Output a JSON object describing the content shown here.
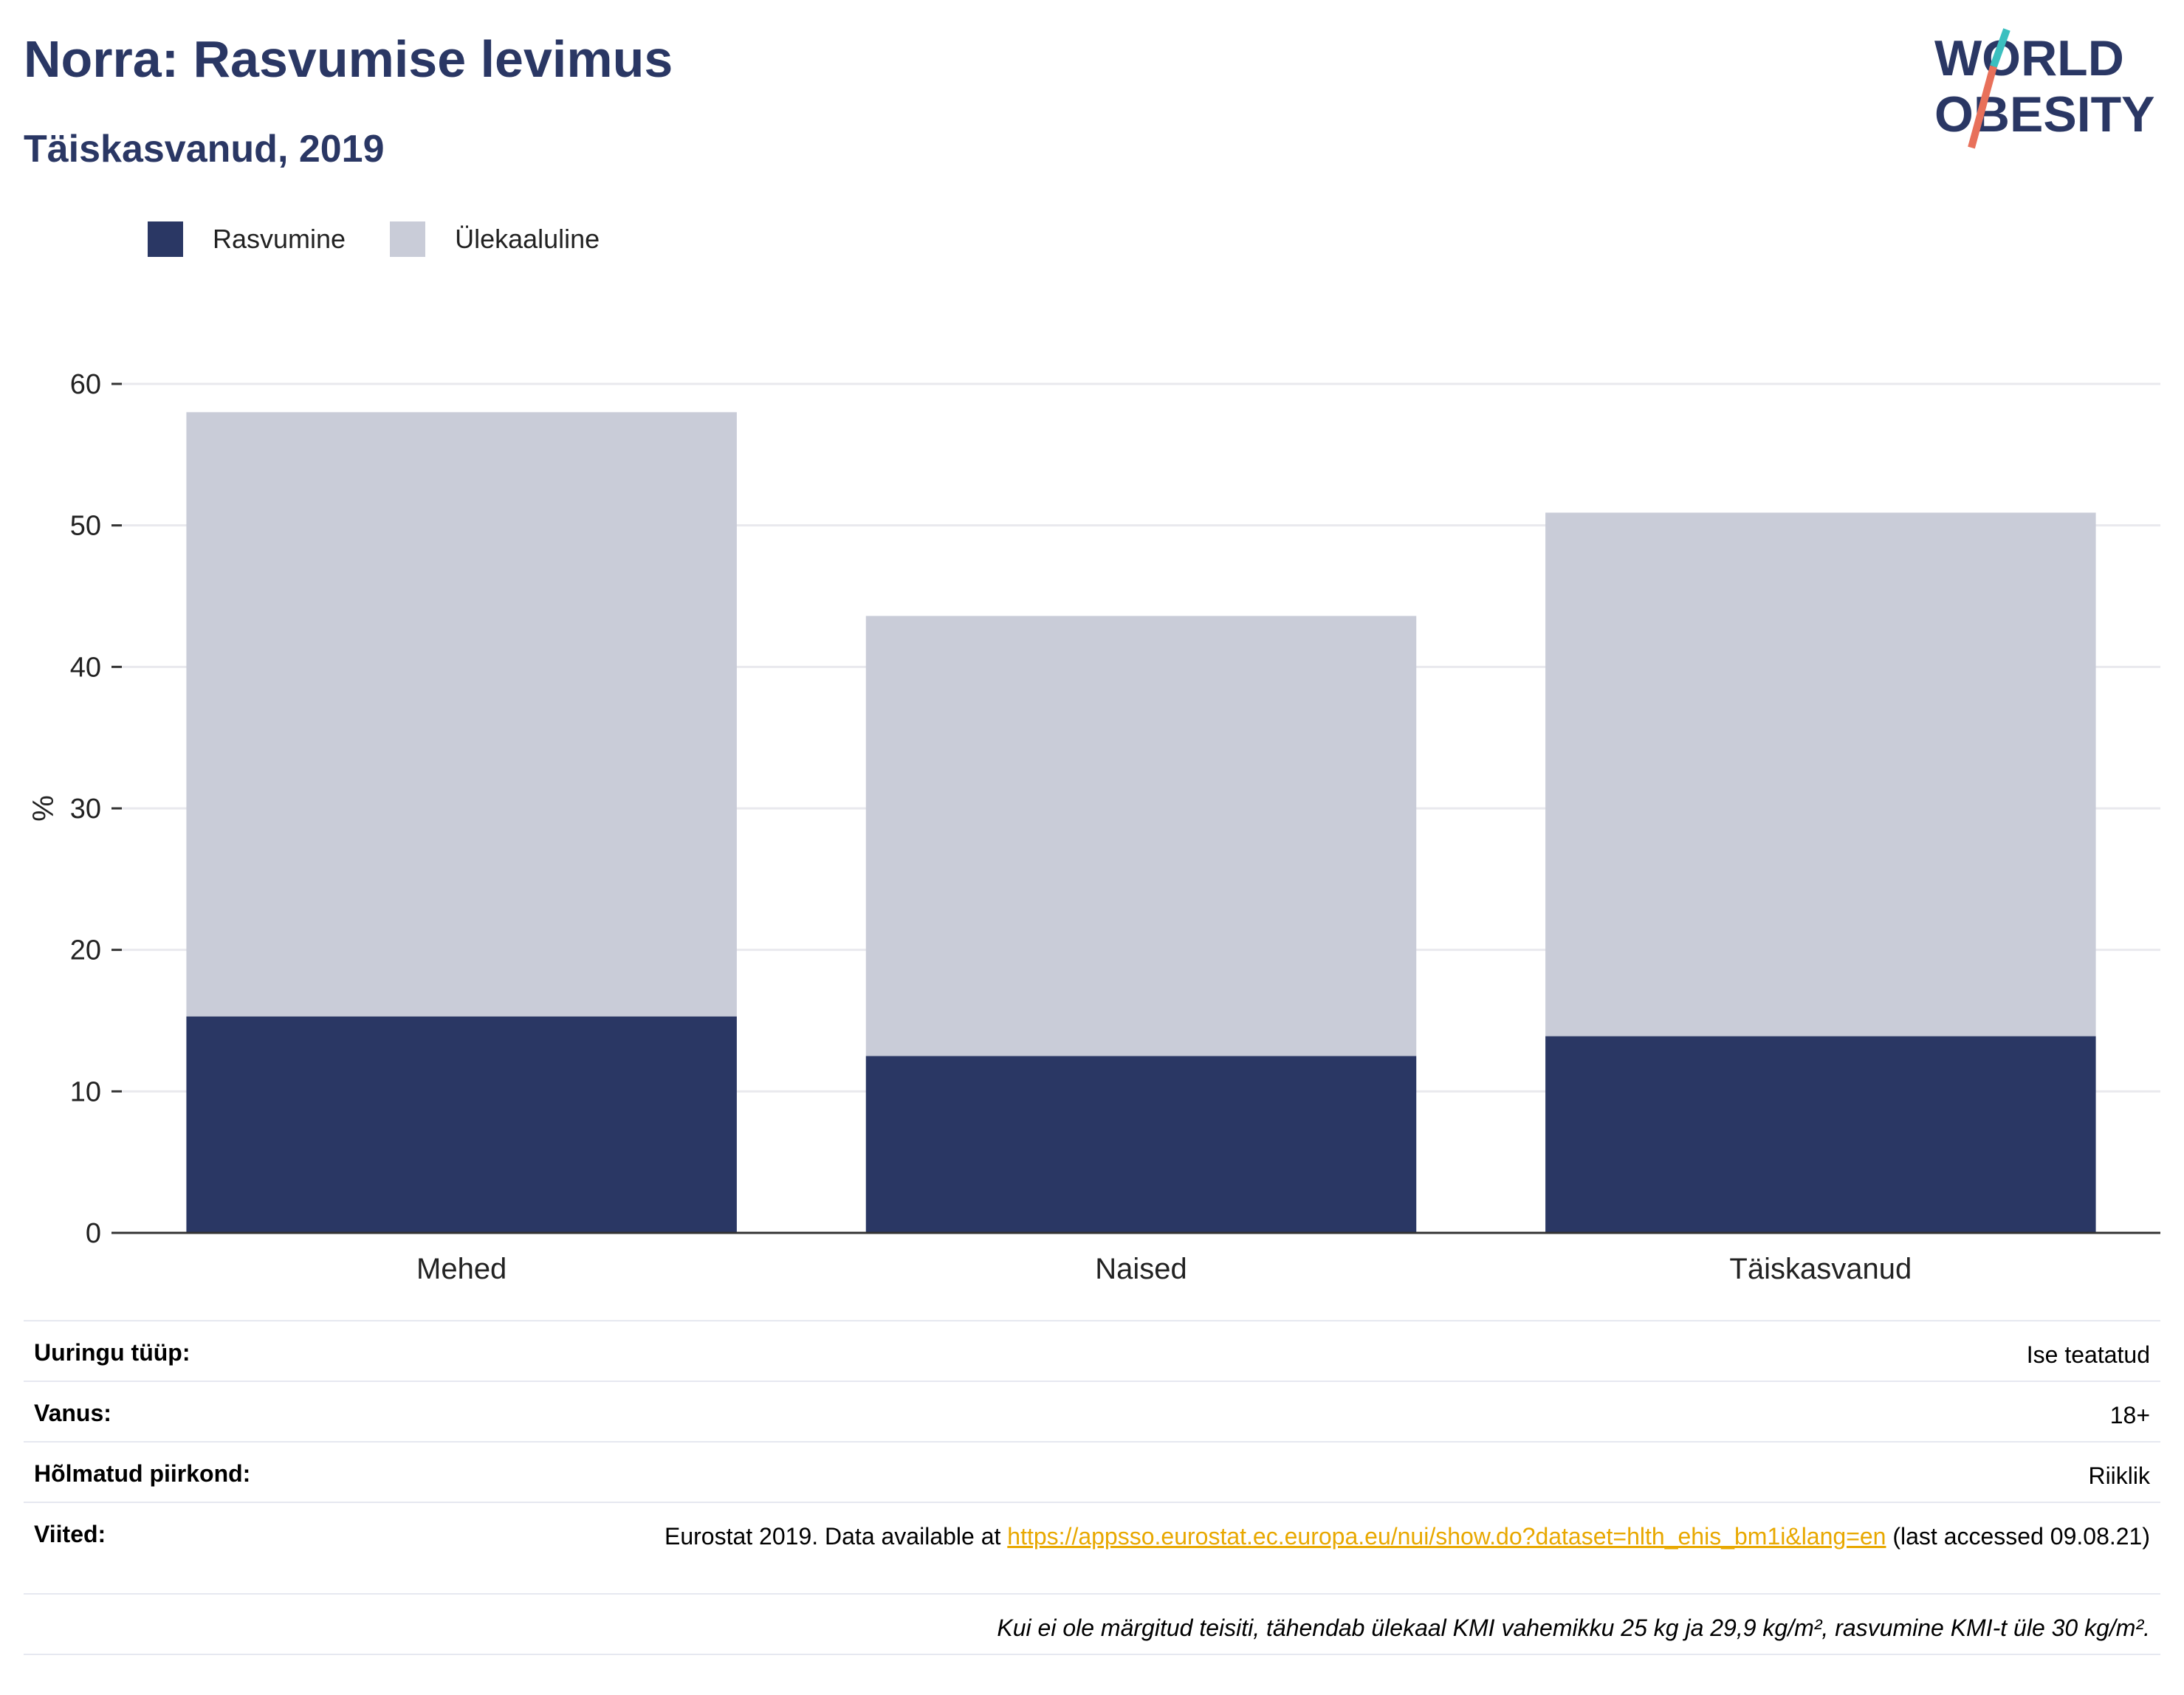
{
  "header": {
    "title": "Norra: Rasvumise levimus",
    "subtitle": "Täiskasvanud, 2019",
    "logo_line1": "WORLD",
    "logo_line2": "OBESITY"
  },
  "colors": {
    "obesity": "#2a3764",
    "overweight": "#c9ccd8",
    "title": "#2a3764",
    "logo_teal": "#3bbfbf",
    "logo_red": "#e8705a",
    "link": "#e8a800"
  },
  "chart_data": {
    "type": "bar",
    "stacked": true,
    "categories": [
      "Mehed",
      "Naised",
      "Täiskasvanud"
    ],
    "series": [
      {
        "name": "Rasvumine",
        "values": [
          15.3,
          12.5,
          13.9
        ]
      },
      {
        "name": "Ülekaaluline",
        "values": [
          42.7,
          31.1,
          37.0
        ]
      }
    ],
    "totals": [
      58.0,
      43.6,
      50.9
    ],
    "ylabel": "%",
    "xlabel": "",
    "ylim": [
      0,
      60
    ],
    "yticks": [
      0,
      10,
      20,
      30,
      40,
      50,
      60
    ],
    "grid": true,
    "legend": "top-left"
  },
  "info": {
    "rows": [
      {
        "label": "Uuringu tüüp:",
        "value": "Ise teatatud"
      },
      {
        "label": "Vanus:",
        "value": "18+"
      },
      {
        "label": "Hõlmatud piirkond:",
        "value": "Riiklik"
      }
    ],
    "references": {
      "label": "Viited:",
      "prefix": "Eurostat 2019. Data available at ",
      "link": "https://appsso.eurostat.ec.europa.eu/nui/show.do?dataset=hlth_ehis_bm1i&lang=en",
      "suffix": " (last accessed 09.08.21)"
    },
    "footnote": "Kui ei ole märgitud teisiti, tähendab ülekaal KMI vahemikku 25 kg ja 29,9 kg/m², rasvumine KMI-t üle 30 kg/m²."
  }
}
